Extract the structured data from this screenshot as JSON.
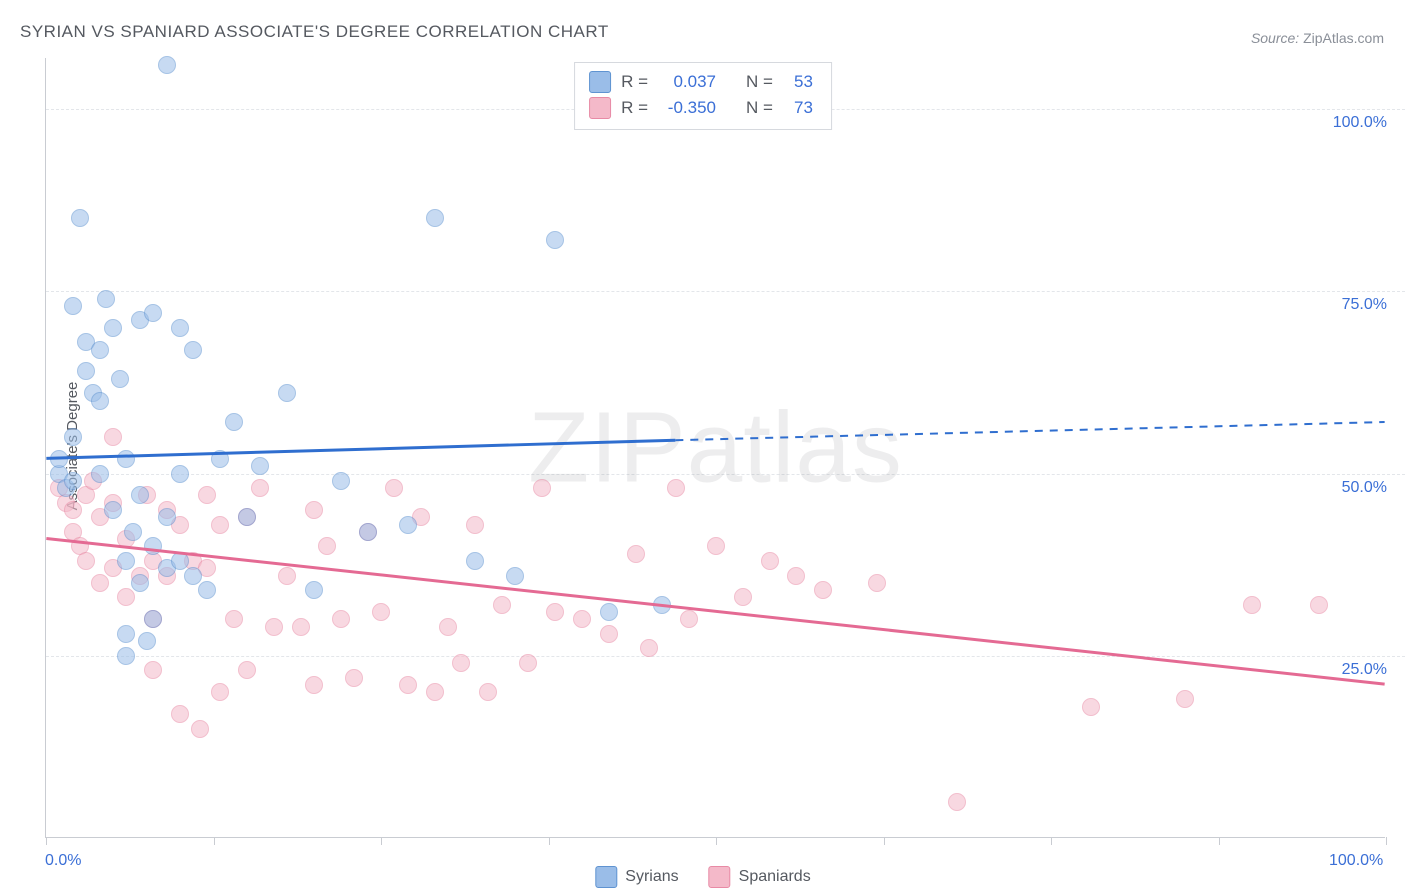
{
  "title": "SYRIAN VS SPANIARD ASSOCIATE'S DEGREE CORRELATION CHART",
  "source_label": "Source:",
  "source_name": "ZipAtlas.com",
  "y_axis_label": "Associate's Degree",
  "watermark": "ZIPatlas",
  "chart": {
    "type": "scatter",
    "background_color": "#ffffff",
    "grid_color": "#e3e6ea",
    "axis_color": "#c9ccd2",
    "xlim": [
      0,
      100
    ],
    "ylim": [
      0,
      107
    ],
    "xtick_positions": [
      0,
      12.5,
      25,
      37.5,
      50,
      62.5,
      75,
      87.5,
      100
    ],
    "xtick_labels": {
      "0": "0.0%",
      "100": "100.0%"
    },
    "ytick_positions": [
      25,
      50,
      75,
      100
    ],
    "ytick_labels": [
      "25.0%",
      "50.0%",
      "75.0%",
      "100.0%"
    ],
    "ytick_label_color": "#3b6fd6",
    "xtick_label_color": "#3b6fd6",
    "point_radius": 9,
    "point_opacity": 0.55,
    "title_fontsize": 17,
    "label_fontsize": 15,
    "tick_fontsize": 16
  },
  "series": [
    {
      "name": "Syrians",
      "fill_color": "#9abde8",
      "stroke_color": "#5f93d1",
      "line_color": "#2f6ecf",
      "trend": {
        "x0": 0,
        "y0": 52,
        "x_solid_end": 47,
        "y_solid_end": 54.5,
        "x1": 100,
        "y1": 57
      },
      "R": "0.037",
      "N": "53",
      "points": [
        [
          1,
          50
        ],
        [
          1,
          52
        ],
        [
          1.5,
          48
        ],
        [
          2,
          49
        ],
        [
          2,
          55
        ],
        [
          2,
          73
        ],
        [
          2.5,
          85
        ],
        [
          3,
          64
        ],
        [
          3,
          68
        ],
        [
          3.5,
          61
        ],
        [
          4,
          50
        ],
        [
          4,
          60
        ],
        [
          4,
          67
        ],
        [
          4.5,
          74
        ],
        [
          5,
          45
        ],
        [
          5,
          70
        ],
        [
          5.5,
          63
        ],
        [
          6,
          25
        ],
        [
          6,
          28
        ],
        [
          6,
          38
        ],
        [
          6,
          52
        ],
        [
          6.5,
          42
        ],
        [
          7,
          35
        ],
        [
          7,
          47
        ],
        [
          7,
          71
        ],
        [
          7.5,
          27
        ],
        [
          8,
          30
        ],
        [
          8,
          40
        ],
        [
          8,
          72
        ],
        [
          9,
          37
        ],
        [
          9,
          44
        ],
        [
          9,
          106
        ],
        [
          10,
          38
        ],
        [
          10,
          50
        ],
        [
          10,
          70
        ],
        [
          11,
          36
        ],
        [
          11,
          67
        ],
        [
          12,
          34
        ],
        [
          13,
          52
        ],
        [
          14,
          57
        ],
        [
          15,
          44
        ],
        [
          16,
          51
        ],
        [
          18,
          61
        ],
        [
          20,
          34
        ],
        [
          22,
          49
        ],
        [
          24,
          42
        ],
        [
          27,
          43
        ],
        [
          29,
          85
        ],
        [
          32,
          38
        ],
        [
          35,
          36
        ],
        [
          38,
          82
        ],
        [
          42,
          31
        ],
        [
          46,
          32
        ]
      ]
    },
    {
      "name": "Spaniards",
      "fill_color": "#f4b9c9",
      "stroke_color": "#e88aa5",
      "line_color": "#e46a93",
      "trend": {
        "x0": 0,
        "y0": 41,
        "x_solid_end": 100,
        "y_solid_end": 21,
        "x1": 100,
        "y1": 21
      },
      "R": "-0.350",
      "N": "73",
      "points": [
        [
          1,
          48
        ],
        [
          1.5,
          46
        ],
        [
          2,
          42
        ],
        [
          2,
          45
        ],
        [
          2.5,
          40
        ],
        [
          3,
          38
        ],
        [
          3,
          47
        ],
        [
          3.5,
          49
        ],
        [
          4,
          35
        ],
        [
          4,
          44
        ],
        [
          5,
          37
        ],
        [
          5,
          46
        ],
        [
          5,
          55
        ],
        [
          6,
          33
        ],
        [
          6,
          41
        ],
        [
          7,
          36
        ],
        [
          7.5,
          47
        ],
        [
          8,
          23
        ],
        [
          8,
          30
        ],
        [
          8,
          38
        ],
        [
          9,
          36
        ],
        [
          9,
          45
        ],
        [
          10,
          17
        ],
        [
          10,
          43
        ],
        [
          11,
          38
        ],
        [
          11.5,
          15
        ],
        [
          12,
          47
        ],
        [
          12,
          37
        ],
        [
          13,
          20
        ],
        [
          13,
          43
        ],
        [
          14,
          30
        ],
        [
          15,
          23
        ],
        [
          15,
          44
        ],
        [
          16,
          48
        ],
        [
          17,
          29
        ],
        [
          18,
          36
        ],
        [
          19,
          29
        ],
        [
          20,
          21
        ],
        [
          20,
          45
        ],
        [
          21,
          40
        ],
        [
          22,
          30
        ],
        [
          23,
          22
        ],
        [
          24,
          42
        ],
        [
          25,
          31
        ],
        [
          26,
          48
        ],
        [
          27,
          21
        ],
        [
          28,
          44
        ],
        [
          29,
          20
        ],
        [
          30,
          29
        ],
        [
          31,
          24
        ],
        [
          32,
          43
        ],
        [
          33,
          20
        ],
        [
          34,
          32
        ],
        [
          36,
          24
        ],
        [
          37,
          48
        ],
        [
          38,
          31
        ],
        [
          40,
          30
        ],
        [
          42,
          28
        ],
        [
          44,
          39
        ],
        [
          45,
          26
        ],
        [
          47,
          48
        ],
        [
          48,
          30
        ],
        [
          50,
          40
        ],
        [
          52,
          33
        ],
        [
          54,
          38
        ],
        [
          56,
          36
        ],
        [
          58,
          34
        ],
        [
          62,
          35
        ],
        [
          68,
          5
        ],
        [
          78,
          18
        ],
        [
          85,
          19
        ],
        [
          90,
          32
        ],
        [
          95,
          32
        ]
      ]
    }
  ],
  "legend_top": {
    "r_label": "R =",
    "n_label": "N ="
  },
  "legend_bottom": [
    {
      "label": "Syrians",
      "series_index": 0
    },
    {
      "label": "Spaniards",
      "series_index": 1
    }
  ]
}
